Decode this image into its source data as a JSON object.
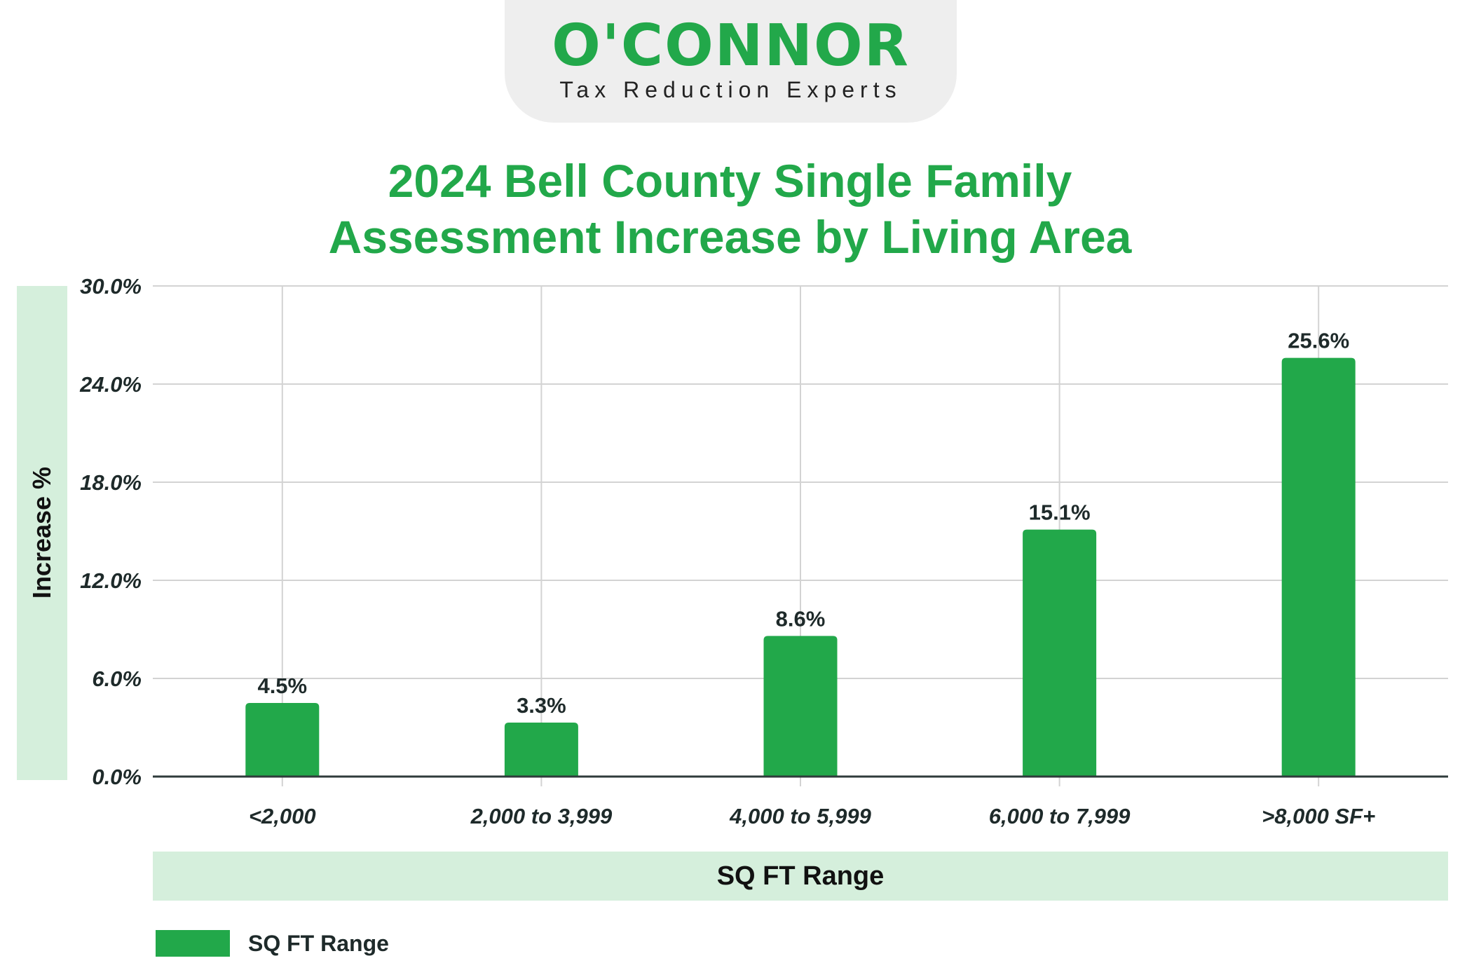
{
  "brand": {
    "name": "O'CONNOR",
    "tagline": "Tax Reduction Experts"
  },
  "colors": {
    "accent": "#22a84a",
    "band": "#d5efdc",
    "grid": "#d3d3d3",
    "text": "#1e2a2a"
  },
  "chart_data": {
    "type": "bar",
    "title_line1": "2024 Bell County Single Family",
    "title_line2": "Assessment Increase by Living Area",
    "xlabel": "SQ FT Range",
    "ylabel": "Increase %",
    "categories": [
      "<2,000",
      "2,000 to 3,999",
      "4,000 to 5,999",
      "6,000 to 7,999",
      ">8,000 SF+"
    ],
    "series": [
      {
        "name": "SQ FT Range",
        "values": [
          4.5,
          3.3,
          8.6,
          15.1,
          25.6
        ],
        "data_labels": [
          "4.5%",
          "3.3%",
          "8.6%",
          "15.1%",
          "25.6%"
        ]
      }
    ],
    "ylim": [
      0,
      30
    ],
    "yticks": [
      0,
      6,
      12,
      18,
      24,
      30
    ],
    "ytick_labels": [
      "0.0%",
      "6.0%",
      "12.0%",
      "18.0%",
      "24.0%",
      "30.0%"
    ],
    "grid": true,
    "legend_position": "bottom-left"
  }
}
